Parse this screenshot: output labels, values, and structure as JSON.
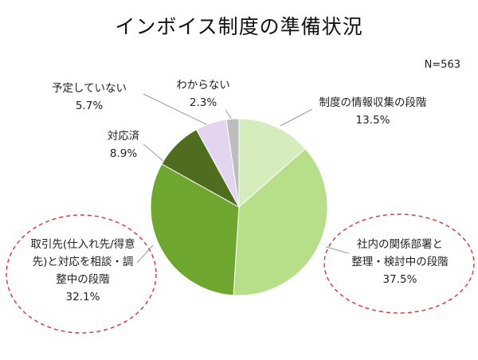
{
  "chart_data": {
    "type": "pie",
    "title": "インボイス制度の準備状況",
    "note": "N=563",
    "start": "12 o'clock",
    "direction": "clockwise",
    "slices": [
      {
        "label": "制度の情報収集の段階",
        "value": 13.5,
        "value_label": "13.5%",
        "color": "#d5ecbd"
      },
      {
        "label": "社内の関係部署と整理・検討中の段階",
        "label_lines": [
          "社内の関係部署と",
          "整理・検討中の段階"
        ],
        "value": 37.5,
        "value_label": "37.5%",
        "color": "#b7df8a",
        "highlighted": true
      },
      {
        "label": "取引先(仕入れ先/得意先)と対応を相談・調整中の段階",
        "label_lines": [
          "取引先(仕入れ先/得意",
          "先)と対応を相談・調",
          "整中の段階"
        ],
        "value": 32.1,
        "value_label": "32.1%",
        "color": "#6fa630",
        "highlighted": true
      },
      {
        "label": "対応済",
        "value": 8.9,
        "value_label": "8.9%",
        "color": "#4e6d1e"
      },
      {
        "label": "予定していない",
        "value": 5.7,
        "value_label": "5.7%",
        "color": "#e3d4ef"
      },
      {
        "label": "わからない",
        "value": 2.3,
        "value_label": "2.3%",
        "color": "#bdbdbd"
      }
    ],
    "highlight_color": "#e23030"
  }
}
